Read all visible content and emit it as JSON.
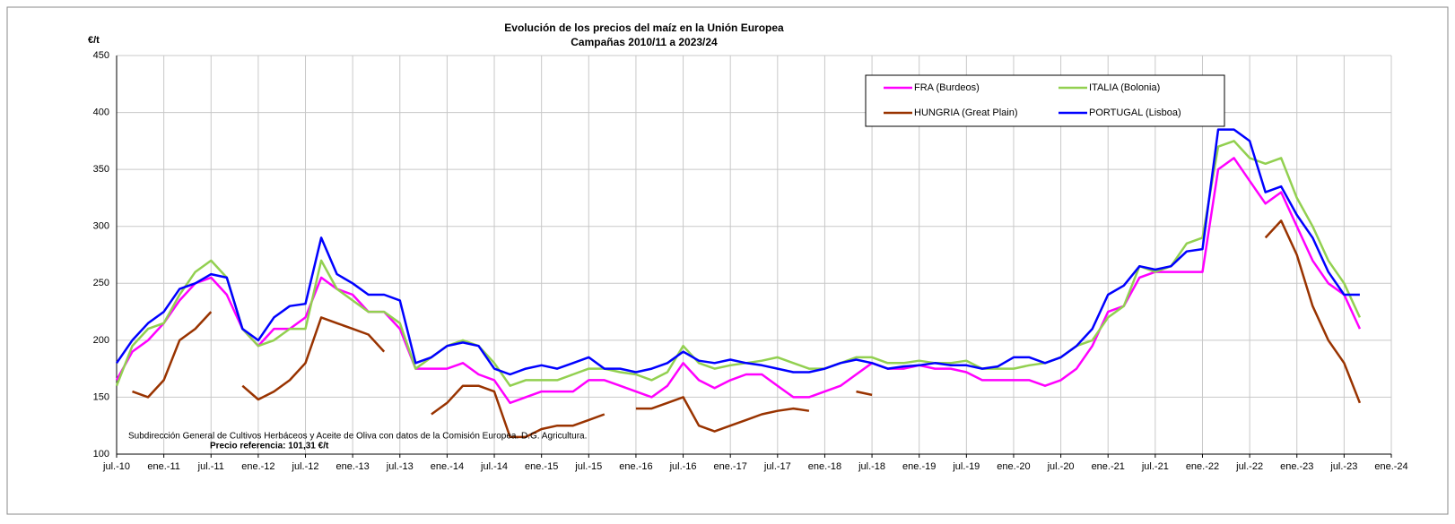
{
  "chart_data": {
    "type": "line",
    "title": "Evolución de los precios del maíz en la Unión Europea",
    "subtitle": "Campañas 2010/11 a 2023/24",
    "y_label": "€/t",
    "source": "Subdirección General de Cultivos Herbáceos y Aceite de Oliva con datos de la Comisión Europea. D.G. Agricultura.",
    "reference": "Precio referencia: 101,31 €/t",
    "categories": [
      "jul.-10",
      null,
      null,
      "ene.-11",
      null,
      null,
      "jul.-11",
      null,
      null,
      "ene.-12",
      null,
      null,
      "jul.-12",
      null,
      null,
      "ene.-13",
      null,
      null,
      "jul.-13",
      null,
      null,
      "ene.-14",
      null,
      null,
      "jul.-14",
      null,
      null,
      "ene.-15",
      null,
      null,
      "jul.-15",
      null,
      null,
      "ene.-16",
      null,
      null,
      "jul.-16",
      null,
      null,
      "ene.-17",
      null,
      null,
      "jul.-17",
      null,
      null,
      "ene.-18",
      null,
      null,
      "jul.-18",
      null,
      null,
      "ene.-19",
      null,
      null,
      "jul.-19",
      null,
      null,
      "ene.-20",
      null,
      null,
      "jul.-20",
      null,
      null,
      "ene.-21",
      null,
      null,
      "jul.-21",
      null,
      null,
      "ene.-22",
      null,
      null,
      "jul.-22",
      null,
      null,
      "ene.-23",
      null,
      null,
      "jul.-23",
      null,
      null,
      "ene.-24"
    ],
    "series": [
      {
        "name": "FRA (Burdeos)",
        "color": "#ff00ff",
        "values": [
          165,
          190,
          200,
          215,
          235,
          250,
          255,
          240,
          210,
          195,
          210,
          210,
          220,
          255,
          245,
          240,
          225,
          225,
          210,
          175,
          175,
          175,
          180,
          170,
          165,
          145,
          150,
          155,
          155,
          155,
          165,
          165,
          160,
          155,
          150,
          160,
          180,
          165,
          158,
          165,
          170,
          170,
          160,
          150,
          150,
          155,
          160,
          170,
          180,
          175,
          175,
          178,
          175,
          175,
          172,
          165,
          165,
          165,
          165,
          160,
          165,
          175,
          195,
          225,
          230,
          255,
          260,
          260,
          260,
          260,
          350,
          360,
          340,
          320,
          330,
          300,
          270,
          250,
          240,
          210,
          null,
          null
        ]
      },
      {
        "name": "ITALIA (Bolonia)",
        "color": "#92d050",
        "values": [
          160,
          195,
          210,
          215,
          240,
          260,
          270,
          255,
          210,
          195,
          200,
          210,
          210,
          270,
          245,
          235,
          225,
          225,
          215,
          175,
          185,
          195,
          200,
          195,
          180,
          160,
          165,
          165,
          165,
          170,
          175,
          175,
          172,
          170,
          165,
          172,
          195,
          180,
          175,
          178,
          180,
          182,
          185,
          180,
          175,
          175,
          180,
          185,
          185,
          180,
          180,
          182,
          180,
          180,
          182,
          175,
          175,
          175,
          178,
          180,
          185,
          195,
          200,
          220,
          230,
          265,
          260,
          265,
          285,
          290,
          370,
          375,
          360,
          355,
          360,
          325,
          300,
          270,
          250,
          220,
          null,
          null
        ]
      },
      {
        "name": "HUNGRIA (Great Plain)",
        "color": "#993300",
        "values": [
          null,
          155,
          150,
          165,
          200,
          210,
          225,
          null,
          160,
          148,
          155,
          165,
          180,
          220,
          215,
          210,
          205,
          190,
          null,
          null,
          135,
          145,
          160,
          160,
          155,
          115,
          115,
          122,
          125,
          125,
          130,
          135,
          null,
          140,
          140,
          145,
          150,
          125,
          120,
          125,
          130,
          135,
          138,
          140,
          138,
          null,
          null,
          155,
          152,
          null,
          null,
          null,
          null,
          null,
          null,
          null,
          null,
          null,
          null,
          null,
          null,
          null,
          null,
          null,
          null,
          null,
          null,
          null,
          null,
          null,
          null,
          null,
          null,
          290,
          305,
          275,
          230,
          200,
          180,
          145,
          null,
          null
        ]
      },
      {
        "name": "PORTUGAL (Lisboa)",
        "color": "#0000ff",
        "values": [
          180,
          200,
          215,
          225,
          245,
          250,
          258,
          255,
          210,
          200,
          220,
          230,
          232,
          290,
          258,
          250,
          240,
          240,
          235,
          180,
          185,
          195,
          198,
          195,
          175,
          170,
          175,
          178,
          175,
          180,
          185,
          175,
          175,
          172,
          175,
          180,
          190,
          182,
          180,
          183,
          180,
          178,
          175,
          172,
          172,
          175,
          180,
          183,
          180,
          175,
          177,
          178,
          180,
          178,
          178,
          175,
          177,
          185,
          185,
          180,
          185,
          195,
          210,
          240,
          248,
          265,
          262,
          265,
          278,
          280,
          385,
          385,
          375,
          330,
          335,
          310,
          290,
          260,
          240,
          240,
          null,
          null
        ]
      }
    ],
    "ylim": [
      100,
      450
    ],
    "yticks": [
      100,
      150,
      200,
      250,
      300,
      350,
      400,
      450
    ],
    "grid": true,
    "legend": "top-right"
  }
}
